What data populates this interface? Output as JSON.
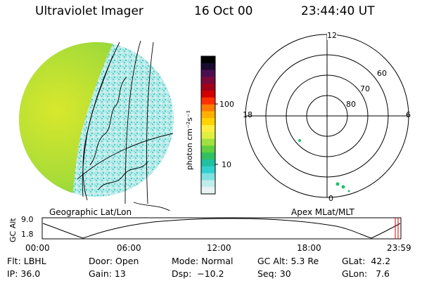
{
  "header": {
    "instrument": "Ultraviolet Imager",
    "date": "16 Oct 00",
    "time": "23:44:40 UT"
  },
  "colorbar": {
    "unit_label": "photon cm⁻²s⁻¹",
    "ticks": [
      "100",
      "10"
    ],
    "colors": [
      "#000000",
      "#1a0a30",
      "#4b0f4f",
      "#7a0a3a",
      "#a0001a",
      "#d00000",
      "#ff3000",
      "#ff7a00",
      "#ffb000",
      "#ffd400",
      "#ffee40",
      "#e0f040",
      "#a0e040",
      "#60d040",
      "#30c060",
      "#20c0a0",
      "#30d0d0",
      "#80e0e0",
      "#c0ecec",
      "#e8f4f4"
    ]
  },
  "geo_panel": {
    "label": "Geographic Lat/Lon"
  },
  "polar_panel": {
    "label": "Apex MLat/MLT",
    "mlt_labels": {
      "top": "12",
      "left": "18",
      "right": "6",
      "bottom": "0"
    },
    "lat_labels": [
      "60",
      "70",
      "80"
    ]
  },
  "timeline": {
    "ylabel": "GC Alt",
    "ticks_y": [
      "9.0",
      "1.8"
    ],
    "ticks_x": [
      "00:00",
      "06:00",
      "12:00",
      "18:00",
      "23:59"
    ]
  },
  "info": {
    "row1": [
      {
        "key": "flt",
        "text": "Flt: LBHL"
      },
      {
        "key": "door",
        "text": "Door: Open"
      },
      {
        "key": "mode",
        "text": "Mode: Normal"
      },
      {
        "key": "gcalt",
        "text": "GC Alt: 5.3 Re"
      },
      {
        "key": "glat",
        "text": "GLat:  42.2"
      }
    ],
    "row2": [
      {
        "key": "ip",
        "text": "IP: 36.0"
      },
      {
        "key": "gain",
        "text": "Gain: 13"
      },
      {
        "key": "dsp",
        "text": "Dsp:  −10.2"
      },
      {
        "key": "seq",
        "text": "Seq: 30"
      },
      {
        "key": "glon",
        "text": "GLon:   7.6"
      }
    ]
  }
}
